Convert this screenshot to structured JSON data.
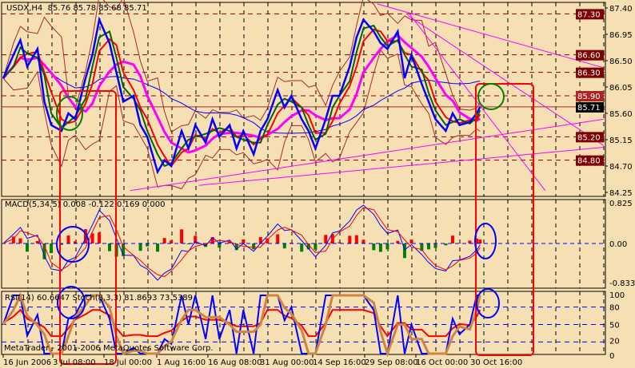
{
  "header": {
    "symbol": "USDX,H4",
    "ohlc": "85.76 85.78 85.68 85.71"
  },
  "macd_label": {
    "name": "MACD(5,34,5)",
    "values": "0.008 -0.122 0.169 0.000"
  },
  "osc_label": {
    "rsi": "RSI(14) 60.6647",
    "stoch": "Stoch(8,3,3) 81.8693 73.5389"
  },
  "watermark": "MetaTrader - 2001-2006 MetaQuotes Software Corp.",
  "colors": {
    "background": "#f7dfb4",
    "price": "#0000ff",
    "ma_fast": "#006400",
    "ma_mid": "#ff0000",
    "ma_slow": "#ff00ff",
    "ma_long": "#0000ff",
    "bands": "#a52a2a",
    "levels": "#8b0000",
    "trendlines": "#ff00ff",
    "annotation_rect": "#ff0000",
    "rsi": "#ff0000",
    "stoch_main": "#0000ff",
    "stoch_signal": "#cd853f"
  },
  "chart_data": [
    {
      "type": "line",
      "title": "USDX,H4",
      "ylim": [
        84.25,
        87.4
      ],
      "yticks": [
        "87.40",
        "86.95",
        "86.50",
        "86.05",
        "85.60",
        "85.15",
        "84.70",
        "84.25"
      ],
      "xlim": [
        "2006-06-16 00:00",
        "2006-12-08 00:00"
      ],
      "xticks": [
        "16 Jun 2006",
        "3 Jul 08:00",
        "18 Jul 00:00",
        "1 Aug 16:00",
        "16 Aug 08:00",
        "31 Aug 00:00",
        "14 Sep 16:00",
        "29 Sep 08:00",
        "16 Oct 00:00",
        "30 Oct 16:00"
      ],
      "grid": true,
      "close": [
        [
          "2006-06-16",
          86.2
        ],
        [
          "2006-06-19",
          86.6
        ],
        [
          "2006-06-21",
          86.85
        ],
        [
          "2006-06-23",
          86.4
        ],
        [
          "2006-06-26",
          86.7
        ],
        [
          "2006-06-28",
          85.8
        ],
        [
          "2006-06-30",
          85.4
        ],
        [
          "2006-07-03",
          85.3
        ],
        [
          "2006-07-05",
          85.6
        ],
        [
          "2006-07-07",
          85.5
        ],
        [
          "2006-07-10",
          86.2
        ],
        [
          "2006-07-12",
          86.6
        ],
        [
          "2006-07-14",
          87.2
        ],
        [
          "2006-07-17",
          86.8
        ],
        [
          "2006-07-19",
          86.3
        ],
        [
          "2006-07-21",
          85.8
        ],
        [
          "2006-07-24",
          85.9
        ],
        [
          "2006-07-26",
          85.4
        ],
        [
          "2006-07-28",
          85.2
        ],
        [
          "2006-07-31",
          84.6
        ],
        [
          "2006-08-02",
          84.8
        ],
        [
          "2006-08-04",
          84.7
        ],
        [
          "2006-08-07",
          85.3
        ],
        [
          "2006-08-09",
          85.0
        ],
        [
          "2006-08-11",
          85.4
        ],
        [
          "2006-08-14",
          85.1
        ],
        [
          "2006-08-16",
          85.5
        ],
        [
          "2006-08-18",
          85.2
        ],
        [
          "2006-08-21",
          85.4
        ],
        [
          "2006-08-23",
          85.0
        ],
        [
          "2006-08-25",
          85.3
        ],
        [
          "2006-08-28",
          84.9
        ],
        [
          "2006-08-30",
          85.3
        ],
        [
          "2006-09-01",
          85.5
        ],
        [
          "2006-09-04",
          86.0
        ],
        [
          "2006-09-06",
          85.7
        ],
        [
          "2006-09-08",
          85.9
        ],
        [
          "2006-09-11",
          85.5
        ],
        [
          "2006-09-13",
          85.3
        ],
        [
          "2006-09-15",
          85.0
        ],
        [
          "2006-09-18",
          85.5
        ],
        [
          "2006-09-20",
          85.9
        ],
        [
          "2006-09-22",
          85.9
        ],
        [
          "2006-09-25",
          86.4
        ],
        [
          "2006-09-27",
          86.9
        ],
        [
          "2006-09-29",
          87.2
        ],
        [
          "2006-10-02",
          87.0
        ],
        [
          "2006-10-04",
          86.8
        ],
        [
          "2006-10-06",
          86.7
        ],
        [
          "2006-10-09",
          87.0
        ],
        [
          "2006-10-11",
          86.2
        ],
        [
          "2006-10-13",
          86.6
        ],
        [
          "2006-10-16",
          86.1
        ],
        [
          "2006-10-18",
          85.8
        ],
        [
          "2006-10-20",
          85.5
        ],
        [
          "2006-10-23",
          85.3
        ],
        [
          "2006-10-25",
          85.6
        ],
        [
          "2006-10-27",
          85.4
        ],
        [
          "2006-10-30",
          85.45
        ],
        [
          "2006-11-01",
          85.6
        ],
        [
          "2006-11-02",
          85.71
        ]
      ],
      "last_price": "85.71",
      "price_levels": [
        {
          "value": "87.30",
          "style": "dashed"
        },
        {
          "value": "86.60",
          "style": "dashed"
        },
        {
          "value": "86.30",
          "style": "dashed"
        },
        {
          "value": "85.90",
          "style": "dashed",
          "tag": "highlight"
        },
        {
          "value": "85.20",
          "style": "dashed"
        },
        {
          "value": "84.80",
          "style": "dashed"
        }
      ],
      "trendlines": [
        [
          [
            "2006-10-03",
            87.47
          ],
          [
            "2006-12-08",
            86.38
          ]
        ],
        [
          [
            "2006-10-12",
            87.33
          ],
          [
            "2006-11-21",
            84.28
          ]
        ],
        [
          [
            "2006-10-12",
            87.27
          ],
          [
            "2006-12-08",
            85.05
          ]
        ],
        [
          [
            "2006-07-23",
            84.28
          ],
          [
            "2006-12-08",
            85.5
          ]
        ],
        [
          [
            "2006-08-12",
            84.37
          ],
          [
            "2006-12-08",
            85.02
          ]
        ]
      ]
    },
    {
      "type": "line",
      "title": "MACD(5,34,5)",
      "ylim": [
        -0.833,
        0.825
      ],
      "yticks": [
        "0.825",
        "0.00",
        "-0.833"
      ],
      "levels": [
        0
      ]
    },
    {
      "type": "line",
      "title": "RSI / Stoch",
      "ylim": [
        0,
        100
      ],
      "yticks": [
        "100",
        "80",
        "50",
        "20",
        "0"
      ],
      "levels": [
        80,
        50,
        20
      ]
    }
  ]
}
